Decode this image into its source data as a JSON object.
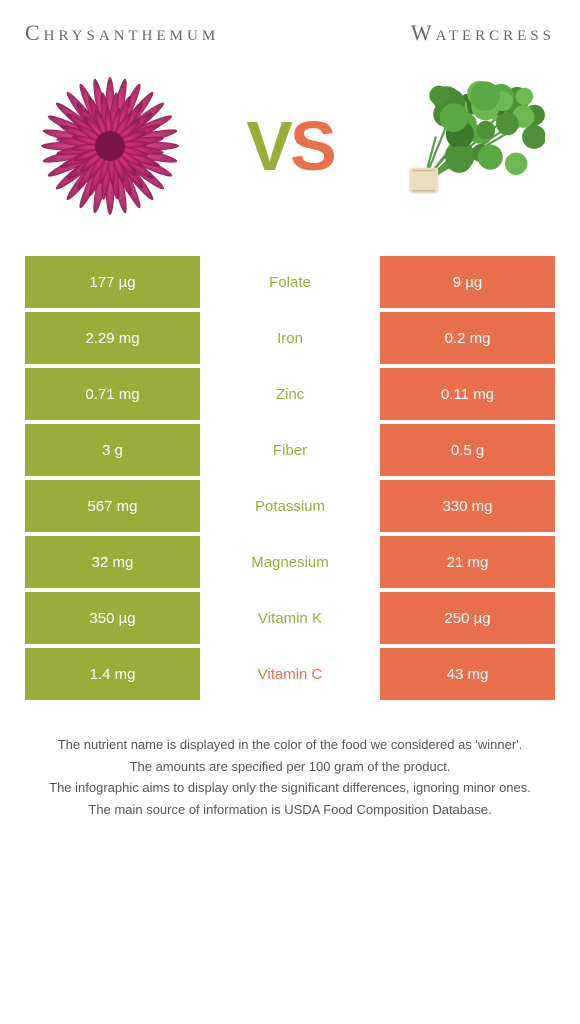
{
  "colors": {
    "left": "#9aad3a",
    "right": "#e8704d",
    "left_text": "#9aad3a",
    "right_text": "#e8704d"
  },
  "header": {
    "left_title": "Chrysanthemum",
    "right_title": "Watercress",
    "vs_v": "V",
    "vs_s": "S"
  },
  "rows": [
    {
      "left": "177 µg",
      "name": "Folate",
      "right": "9 µg",
      "winner": "left"
    },
    {
      "left": "2.29 mg",
      "name": "Iron",
      "right": "0.2 mg",
      "winner": "left"
    },
    {
      "left": "0.71 mg",
      "name": "Zinc",
      "right": "0.11 mg",
      "winner": "left"
    },
    {
      "left": "3 g",
      "name": "Fiber",
      "right": "0.5 g",
      "winner": "left"
    },
    {
      "left": "567 mg",
      "name": "Potassium",
      "right": "330 mg",
      "winner": "left"
    },
    {
      "left": "32 mg",
      "name": "Magnesium",
      "right": "21 mg",
      "winner": "left"
    },
    {
      "left": "350 µg",
      "name": "Vitamin K",
      "right": "250 µg",
      "winner": "left"
    },
    {
      "left": "1.4 mg",
      "name": "Vitamin C",
      "right": "43 mg",
      "winner": "right"
    }
  ],
  "footer": [
    "The nutrient name is displayed in the color of the food we considered as 'winner'.",
    "The amounts are specified per 100 gram of the product.",
    "The infographic aims to display only the significant differences, ignoring minor ones.",
    "The main source of information is USDA Food Composition Database."
  ]
}
